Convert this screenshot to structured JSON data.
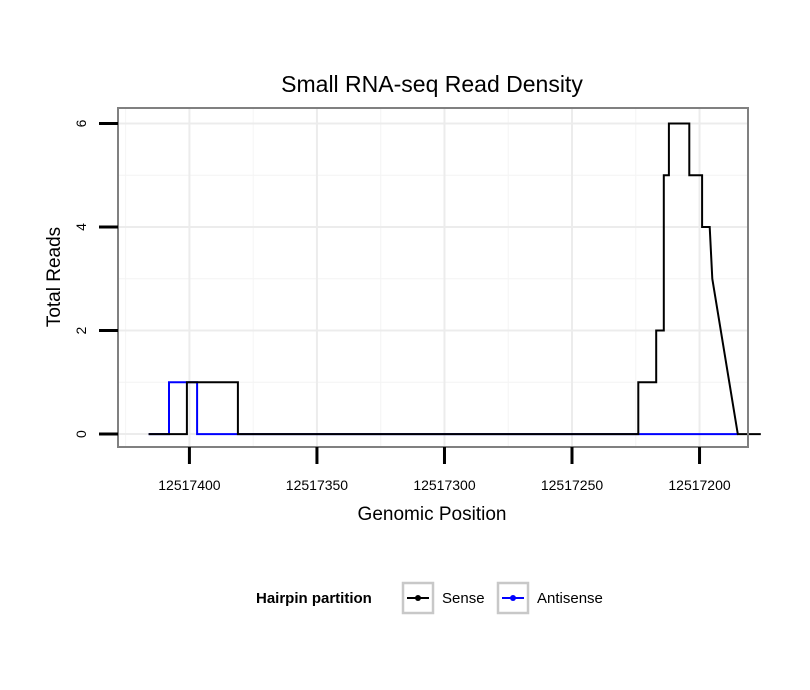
{
  "chart_data": {
    "type": "line",
    "title": "Small RNA-seq Read Density",
    "xlabel": "Genomic Position",
    "ylabel": "Total Reads",
    "x_reversed": true,
    "xlim": [
      12517428,
      12517181
    ],
    "ylim": [
      -0.25,
      6.3
    ],
    "x_ticks": [
      12517400,
      12517350,
      12517300,
      12517250,
      12517200
    ],
    "x_tick_labels": [
      "12517400",
      "12517350",
      "12517300",
      "12517250",
      "12517200"
    ],
    "y_ticks": [
      0,
      2,
      4,
      6
    ],
    "y_tick_labels": [
      "0",
      "2",
      "4",
      "6"
    ],
    "grid": true,
    "legend": {
      "title": "Hairpin partition",
      "position": "bottom",
      "entries": [
        "Sense",
        "Antisense"
      ]
    },
    "series": [
      {
        "name": "Sense",
        "color": "#000000",
        "x": [
          12517416,
          12517401,
          12517401,
          12517398,
          12517398,
          12517381,
          12517381,
          12517224,
          12517224,
          12517222,
          12517222,
          12517217,
          12517217,
          12517214,
          12517214,
          12517212,
          12517212,
          12517207,
          12517207,
          12517204,
          12517204,
          12517199,
          12517199,
          12517196,
          12517196,
          12517195,
          12517195,
          12517195,
          12517185,
          12517185,
          12517176
        ],
        "y": [
          0,
          0,
          1,
          1,
          1,
          1,
          0,
          0,
          1,
          1,
          1,
          1,
          2,
          2,
          5,
          5,
          6,
          6,
          6,
          6,
          5,
          5,
          4,
          4,
          4,
          3,
          3,
          3,
          0,
          0,
          0
        ]
      },
      {
        "name": "Antisense",
        "color": "#0000ff",
        "x": [
          12517416,
          12517408,
          12517408,
          12517397,
          12517397,
          12517185
        ],
        "y": [
          0,
          0,
          1,
          1,
          0,
          0
        ]
      }
    ]
  }
}
